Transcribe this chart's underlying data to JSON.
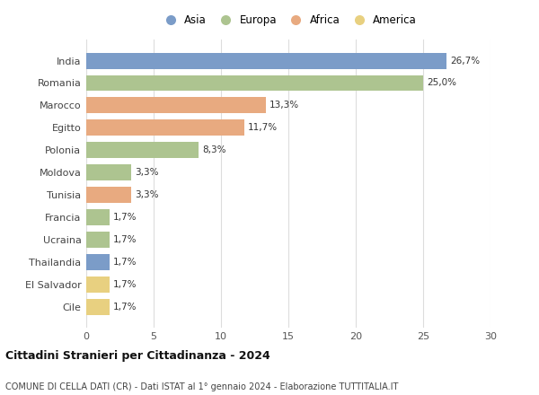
{
  "categories": [
    "India",
    "Romania",
    "Marocco",
    "Egitto",
    "Polonia",
    "Moldova",
    "Tunisia",
    "Francia",
    "Ucraina",
    "Thailandia",
    "El Salvador",
    "Cile"
  ],
  "values": [
    26.7,
    25.0,
    13.3,
    11.7,
    8.3,
    3.3,
    3.3,
    1.7,
    1.7,
    1.7,
    1.7,
    1.7
  ],
  "labels": [
    "26,7%",
    "25,0%",
    "13,3%",
    "11,7%",
    "8,3%",
    "3,3%",
    "3,3%",
    "1,7%",
    "1,7%",
    "1,7%",
    "1,7%",
    "1,7%"
  ],
  "continents": [
    "Asia",
    "Europa",
    "Africa",
    "Africa",
    "Europa",
    "Europa",
    "Africa",
    "Europa",
    "Europa",
    "Asia",
    "America",
    "America"
  ],
  "colors": {
    "Asia": "#7b9cc8",
    "Europa": "#adc490",
    "Africa": "#e8aa80",
    "America": "#e8d080"
  },
  "legend_order": [
    "Asia",
    "Europa",
    "Africa",
    "America"
  ],
  "title": "Cittadini Stranieri per Cittadinanza - 2024",
  "subtitle": "COMUNE DI CELLA DATI (CR) - Dati ISTAT al 1° gennaio 2024 - Elaborazione TUTTITALIA.IT",
  "xlim": [
    0,
    30
  ],
  "xticks": [
    0,
    5,
    10,
    15,
    20,
    25,
    30
  ],
  "background_color": "#ffffff",
  "grid_color": "#dddddd",
  "bar_height": 0.72
}
